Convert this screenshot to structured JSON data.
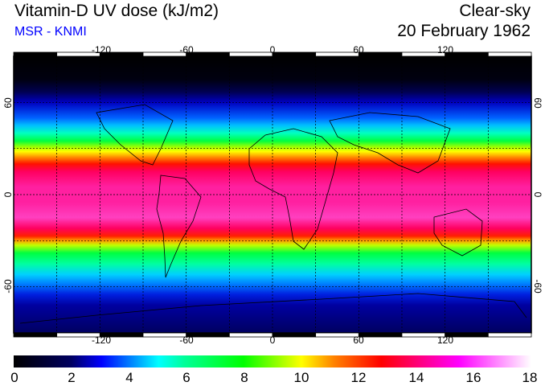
{
  "header": {
    "title": "Vitamin-D UV dose (kJ/m2)",
    "source": "MSR - KNMI",
    "condition": "Clear-sky",
    "date": "20 February 1962"
  },
  "map": {
    "projection": "equirectangular",
    "lon_ticks": [
      "-120",
      "-60",
      "0",
      "60",
      "120"
    ],
    "lon_values": [
      -120,
      -60,
      0,
      60,
      120
    ],
    "lat_ticks": [
      "60",
      "0",
      "-60"
    ],
    "lat_values": [
      60,
      0,
      -60
    ],
    "grid_spacing_deg": 30
  },
  "colorbar": {
    "range": [
      0,
      18
    ],
    "labels": [
      "0",
      "2",
      "4",
      "6",
      "8",
      "10",
      "12",
      "14",
      "16",
      "18"
    ],
    "colors": [
      "#000000",
      "#000060",
      "#0000ff",
      "#00ffff",
      "#00ff00",
      "#ffff00",
      "#ff8000",
      "#ff0000",
      "#ff00ff",
      "#ffffff"
    ]
  }
}
